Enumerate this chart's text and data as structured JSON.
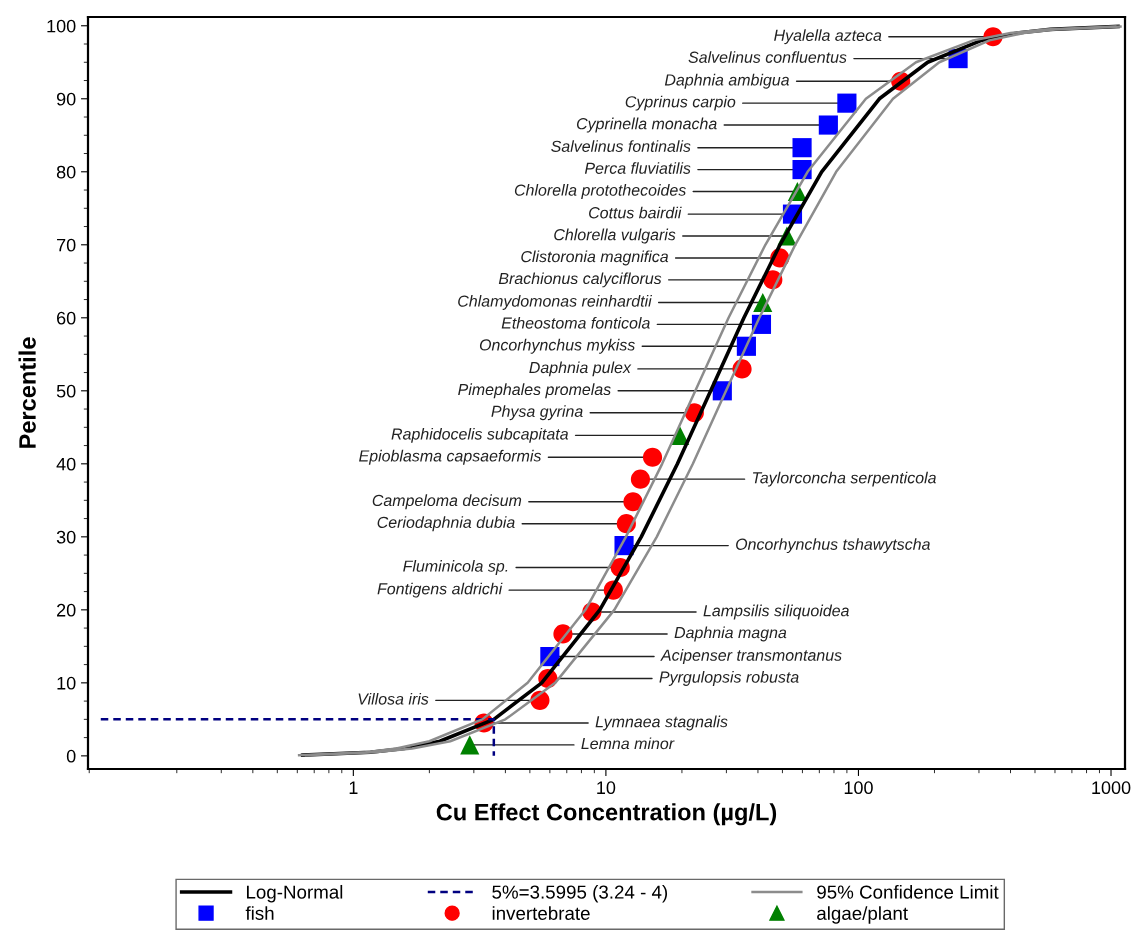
{
  "chart_data": {
    "type": "scatter",
    "xlabel": "Cu Effect Concentration (µg/L)",
    "ylabel": "Percentile",
    "log": "x",
    "xlim": [
      0.089,
      1136
    ],
    "xticks": [
      1,
      10,
      100,
      1000
    ],
    "ylim": [
      -1.8,
      101.2
    ],
    "yticks": [
      0,
      10,
      20,
      30,
      40,
      50,
      60,
      70,
      80,
      90,
      100
    ],
    "grid": false,
    "legend": "bottom",
    "series": [
      {
        "name": "Log-Normal",
        "type": "line",
        "color": "#000000",
        "line_style": "solid",
        "marker": "none",
        "x": [
          0.63,
          1.17,
          1.59,
          2.2,
          3.6,
          5.57,
          9.46,
          13.8,
          19.2,
          26.0,
          35.2,
          48.9,
          71.5,
          121,
          188,
          307,
          426,
          575,
          1066
        ],
        "values": [
          0.1,
          0.5,
          1,
          2,
          5,
          10,
          20,
          30,
          40,
          50,
          60,
          70,
          80,
          90,
          95,
          98,
          99,
          99.5,
          99.9
        ]
      },
      {
        "name": "5%=3.5995 (3.24 - 4)",
        "type": "line",
        "color": "#000080",
        "line_style": "dashed",
        "marker": "none",
        "x": [
          0.1,
          3.5995,
          3.5995
        ],
        "values": [
          5,
          5,
          0
        ]
      },
      {
        "name": "95% Confidence Limit",
        "type": "line",
        "color": "#8c8c8c",
        "line_style": "solid",
        "marker": "none",
        "x": [
          0.61,
          1.12,
          1.48,
          2.0,
          3.24,
          4.9,
          8.3,
          12.0,
          16.7,
          22.6,
          30.6,
          42.8,
          62.9,
          107,
          169,
          285,
          400,
          550,
          1040
        ],
        "values": [
          0.1,
          0.5,
          1,
          2,
          5,
          10,
          20,
          30,
          40,
          50,
          60,
          70,
          80,
          90,
          95,
          98,
          99,
          99.5,
          99.9
        ]
      },
      {
        "type": "line",
        "color": "#8c8c8c",
        "line_style": "solid",
        "marker": "none",
        "x": [
          0.65,
          1.22,
          1.71,
          2.42,
          4.0,
          6.3,
          10.8,
          15.9,
          22.1,
          29.9,
          40.5,
          56.2,
          81.6,
          137,
          209,
          330,
          452,
          600,
          1090
        ],
        "values": [
          0.1,
          0.5,
          1,
          2,
          5,
          10,
          20,
          30,
          40,
          50,
          60,
          70,
          80,
          90,
          95,
          98,
          99,
          99.5,
          99.9
        ]
      },
      {
        "name": "fish",
        "color": "#0000ff",
        "marker": "square",
        "x": [
          6.0,
          11.8,
          28.9,
          36.0,
          41.3,
          54.8,
          59.8,
          59.8,
          76.0,
          90.0,
          248
        ],
        "values": [
          13.6,
          28.8,
          50.0,
          56.1,
          59.1,
          74.2,
          80.3,
          83.3,
          86.4,
          89.4,
          95.5
        ]
      },
      {
        "name": "invertebrate",
        "color": "#ff0000",
        "marker": "circle",
        "x": [
          3.29,
          5.48,
          5.89,
          6.76,
          8.8,
          10.7,
          11.4,
          12.05,
          12.8,
          13.7,
          15.3,
          22.4,
          34.6,
          45.8,
          48.8,
          147,
          341
        ],
        "values": [
          4.5,
          7.6,
          10.6,
          16.7,
          19.7,
          22.7,
          25.8,
          31.8,
          34.8,
          37.9,
          40.9,
          47.0,
          53.0,
          65.2,
          68.2,
          92.4,
          98.5
        ]
      },
      {
        "name": "algae/plant",
        "color": "#008000",
        "marker": "triangle",
        "x": [
          2.89,
          19.6,
          41.8,
          52.1,
          57.3
        ],
        "values": [
          1.5,
          43.9,
          62.1,
          71.2,
          77.3
        ]
      }
    ],
    "annotations": [
      {
        "text": "Lemna minor",
        "x": 2.89,
        "y": 1.5
      },
      {
        "text": "Lymnaea stagnalis",
        "x": 3.29,
        "y": 4.5
      },
      {
        "text": "Villosa iris",
        "x": 5.48,
        "y": 7.6
      },
      {
        "text": "Pyrgulopsis robusta",
        "x": 5.89,
        "y": 10.6
      },
      {
        "text": "Acipenser transmontanus",
        "x": 6.0,
        "y": 13.6
      },
      {
        "text": "Daphnia magna",
        "x": 6.76,
        "y": 16.7
      },
      {
        "text": "Lampsilis siliquoidea",
        "x": 8.8,
        "y": 19.7
      },
      {
        "text": "Fontigens aldrichi",
        "x": 10.7,
        "y": 22.7
      },
      {
        "text": "Fluminicola sp.",
        "x": 11.4,
        "y": 25.8
      },
      {
        "text": "Oncorhynchus tshawytscha",
        "x": 11.8,
        "y": 28.8
      },
      {
        "text": "Ceriodaphnia dubia",
        "x": 12.05,
        "y": 31.8
      },
      {
        "text": "Campeloma decisum",
        "x": 12.8,
        "y": 34.8
      },
      {
        "text": "Taylorconcha serpenticola",
        "x": 13.7,
        "y": 37.9
      },
      {
        "text": "Epioblasma capsaeformis",
        "x": 15.3,
        "y": 40.9
      },
      {
        "text": "Raphidocelis subcapitata",
        "x": 19.6,
        "y": 43.9
      },
      {
        "text": "Physa gyrina",
        "x": 22.4,
        "y": 47.0
      },
      {
        "text": "Pimephales promelas",
        "x": 28.9,
        "y": 50.0
      },
      {
        "text": "Daphnia pulex",
        "x": 34.6,
        "y": 53.0
      },
      {
        "text": "Oncorhynchus mykiss",
        "x": 36.0,
        "y": 56.1
      },
      {
        "text": "Etheostoma fonticola",
        "x": 41.3,
        "y": 59.1
      },
      {
        "text": "Chlamydomonas reinhardtii",
        "x": 41.8,
        "y": 62.1
      },
      {
        "text": "Brachionus calyciflorus",
        "x": 45.8,
        "y": 65.2
      },
      {
        "text": "Clistoronia magnifica",
        "x": 48.8,
        "y": 68.2
      },
      {
        "text": "Chlorella vulgaris",
        "x": 52.1,
        "y": 71.2
      },
      {
        "text": "Cottus bairdii",
        "x": 54.8,
        "y": 74.2
      },
      {
        "text": "Chlorella protothecoides",
        "x": 57.3,
        "y": 77.3
      },
      {
        "text": "Perca fluviatilis",
        "x": 59.8,
        "y": 80.3
      },
      {
        "text": "Salvelinus fontinalis",
        "x": 59.8,
        "y": 83.3
      },
      {
        "text": "Cyprinella monacha",
        "x": 76.0,
        "y": 86.4
      },
      {
        "text": "Cyprinus carpio",
        "x": 90.0,
        "y": 89.4
      },
      {
        "text": "Daphnia ambigua",
        "x": 147,
        "y": 92.4
      },
      {
        "text": "Salvelinus confluentus",
        "x": 248,
        "y": 95.5
      },
      {
        "text": "Hyalella azteca",
        "x": 341,
        "y": 98.5
      }
    ]
  }
}
